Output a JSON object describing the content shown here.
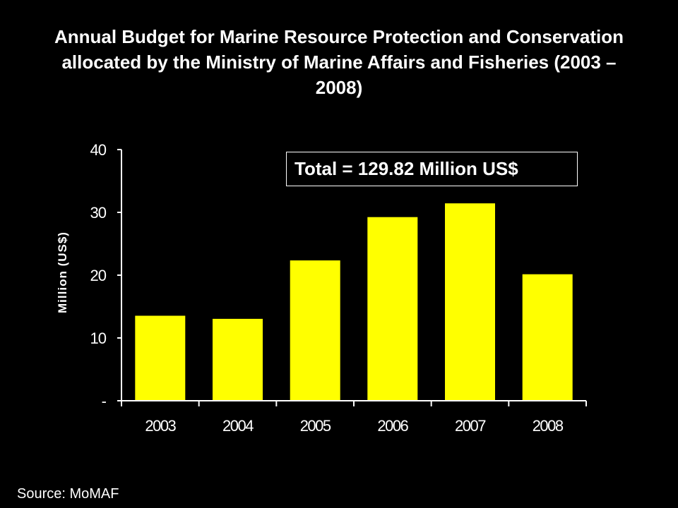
{
  "title": "Annual Budget for Marine Resource Protection and Conservation allocated by the Ministry of Marine Affairs and Fisheries (2003 – 2008)",
  "annotation": "Total = 129.82 Million US$",
  "source": "Source: MoMAF",
  "colors": {
    "background": "#000000",
    "bar": "#ffff00",
    "bar_outline": "#000000",
    "text": "#ffffff",
    "axis": "#ffffff"
  },
  "chart_data": {
    "type": "bar",
    "categories": [
      "2003",
      "2004",
      "2005",
      "2006",
      "2007",
      "2008"
    ],
    "values": [
      13.6,
      13.1,
      22.4,
      29.3,
      31.5,
      20.2
    ],
    "xlabel": "",
    "ylabel": "Million (US$)",
    "ylim": [
      0,
      40
    ],
    "yticks": [
      0,
      10,
      20,
      30,
      40
    ],
    "ytick_labels": [
      "-",
      "10",
      "20",
      "30",
      "40"
    ],
    "grid": false,
    "legend": null
  }
}
